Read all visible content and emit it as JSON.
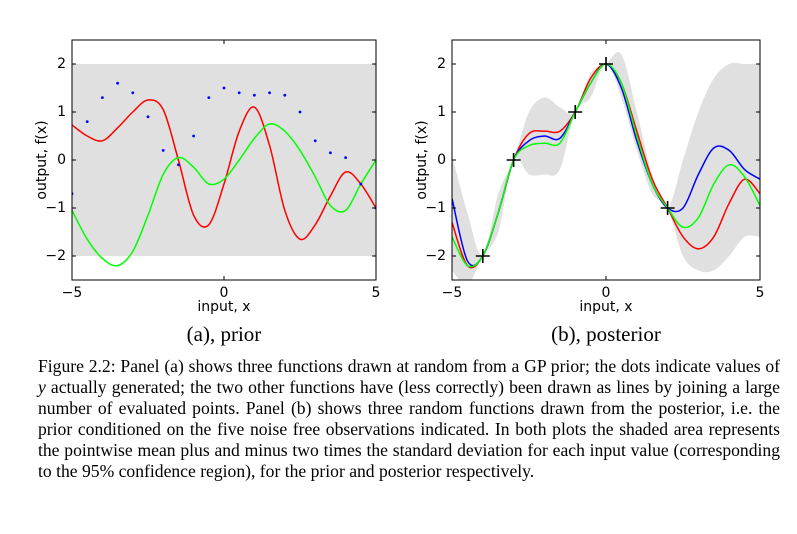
{
  "chart_data": [
    {
      "type": "line",
      "caption": "(a), prior",
      "xlabel": "input, x",
      "ylabel": "output, f(x)",
      "xlim": [
        -5,
        5
      ],
      "ylim": [
        -2.5,
        2.5
      ],
      "xticks": [
        {
          "value": -5,
          "label": "−5"
        },
        0,
        5
      ],
      "yticks": [
        {
          "value": -2,
          "label": "−2"
        },
        {
          "value": -1,
          "label": "−1"
        },
        0,
        1,
        2
      ],
      "x": [
        -5,
        -4.5,
        -4,
        -3.5,
        -3,
        -2.5,
        -2,
        -1.5,
        -1,
        -0.5,
        0,
        0.5,
        1,
        1.5,
        2,
        2.5,
        3,
        3.5,
        4,
        4.5,
        5
      ],
      "band": {
        "color": "#e0e0e0",
        "x": [
          -5,
          5
        ],
        "lower": [
          -2,
          -2
        ],
        "upper": [
          2,
          2
        ]
      },
      "series": [
        {
          "color": "#ff0000",
          "values": [
            0.73,
            0.5,
            0.4,
            0.67,
            1.0,
            1.25,
            1.05,
            0,
            -1.15,
            -1.35,
            -0.5,
            0.6,
            1.1,
            0.3,
            -1.05,
            -1.65,
            -1.35,
            -0.75,
            -0.25,
            -0.5,
            -1.0
          ]
        },
        {
          "color": "#00ff00",
          "values": [
            -1.05,
            -1.65,
            -2.05,
            -2.2,
            -1.9,
            -1.15,
            -0.3,
            0.05,
            -0.15,
            -0.5,
            -0.4,
            0,
            0.45,
            0.75,
            0.6,
            0.2,
            -0.35,
            -0.95,
            -1.05,
            -0.5,
            0
          ]
        }
      ],
      "dots": {
        "color": "#0000ff",
        "values": [
          -0.7,
          0.8,
          1.3,
          1.6,
          1.4,
          0.9,
          0.2,
          -0.1,
          0.5,
          1.3,
          1.5,
          1.4,
          1.35,
          1.4,
          1.35,
          1.0,
          0.4,
          0.15,
          0.05,
          -0.5,
          -1.0
        ]
      }
    },
    {
      "type": "line",
      "caption": "(b), posterior",
      "xlabel": "input, x",
      "ylabel": "output, f(x)",
      "xlim": [
        -5,
        5
      ],
      "ylim": [
        -2.5,
        2.5
      ],
      "xticks": [
        {
          "value": -5,
          "label": "−5"
        },
        0,
        5
      ],
      "yticks": [
        {
          "value": -2,
          "label": "−2"
        },
        {
          "value": -1,
          "label": "−1"
        },
        0,
        1,
        2
      ],
      "x": [
        -5,
        -4.5,
        -4,
        -3.5,
        -3,
        -2.5,
        -2,
        -1.5,
        -1,
        -0.5,
        0,
        0.5,
        1,
        1.5,
        2,
        2.5,
        3,
        3.5,
        4,
        4.5,
        5
      ],
      "band": {
        "color": "#e0e0e0",
        "x": [
          -5,
          -4.5,
          -4,
          -3.5,
          -3,
          -2.5,
          -2,
          -1.5,
          -1,
          -0.5,
          0,
          0.5,
          1,
          1.5,
          2,
          2.5,
          3,
          3.5,
          4,
          4.5,
          5
        ],
        "lower": [
          -2.3,
          -2.6,
          -2,
          -1.5,
          0,
          -0.3,
          -0.3,
          -0.2,
          1.0,
          1.3,
          2,
          1.3,
          0.2,
          -0.7,
          -1,
          -2.0,
          -2.3,
          -2.3,
          -2.0,
          -1.6,
          -1.6
        ],
        "upper": [
          0.1,
          -1.1,
          -2,
          -0.7,
          0,
          1.0,
          1.3,
          1.1,
          1.0,
          1.8,
          2,
          2.2,
          1.0,
          -0.3,
          -1,
          0.0,
          1.0,
          1.7,
          2.0,
          2.0,
          2.0
        ]
      },
      "series": [
        {
          "color": "#ff0000",
          "values": [
            -1.3,
            -2.2,
            -2.0,
            -1.1,
            0,
            0.55,
            0.6,
            0.6,
            1.0,
            1.7,
            2.0,
            1.6,
            0.6,
            -0.4,
            -1.0,
            -1.6,
            -1.85,
            -1.6,
            -0.9,
            -0.4,
            -0.7
          ]
        },
        {
          "color": "#0000ff",
          "values": [
            -0.8,
            -2.1,
            -2.0,
            -1.1,
            0,
            0.4,
            0.5,
            0.45,
            1.0,
            1.6,
            2.0,
            1.5,
            0.4,
            -0.5,
            -1.0,
            -1.0,
            -0.3,
            0.25,
            0.2,
            -0.2,
            -0.4
          ]
        },
        {
          "color": "#00ff00",
          "values": [
            -1.6,
            -2.2,
            -2.0,
            -1.1,
            0,
            0.3,
            0.35,
            0.35,
            1.0,
            1.6,
            2.0,
            1.6,
            0.5,
            -0.5,
            -1.0,
            -1.4,
            -1.2,
            -0.5,
            -0.1,
            -0.35,
            -0.95
          ]
        }
      ],
      "observations": {
        "x": [
          -4,
          -3,
          -1,
          0,
          2
        ],
        "y": [
          -2,
          0,
          1,
          2,
          -1
        ]
      }
    }
  ],
  "figure_caption": [
    "Figure 2.2:  Panel (a) shows three functions drawn at random from a GP prior; the dots indicate values of ",
    "y",
    " actually generated; the two other functions have (less correctly) been drawn as lines by joining a large number of evaluated points. Panel (b) shows three random functions drawn from the posterior, i.e. the prior conditioned on the five noise free observations indicated. In both plots the shaded area represents the pointwise mean plus and minus two times the standard deviation for each input value (corresponding to the 95% confidence region), for the prior and posterior respectively."
  ]
}
